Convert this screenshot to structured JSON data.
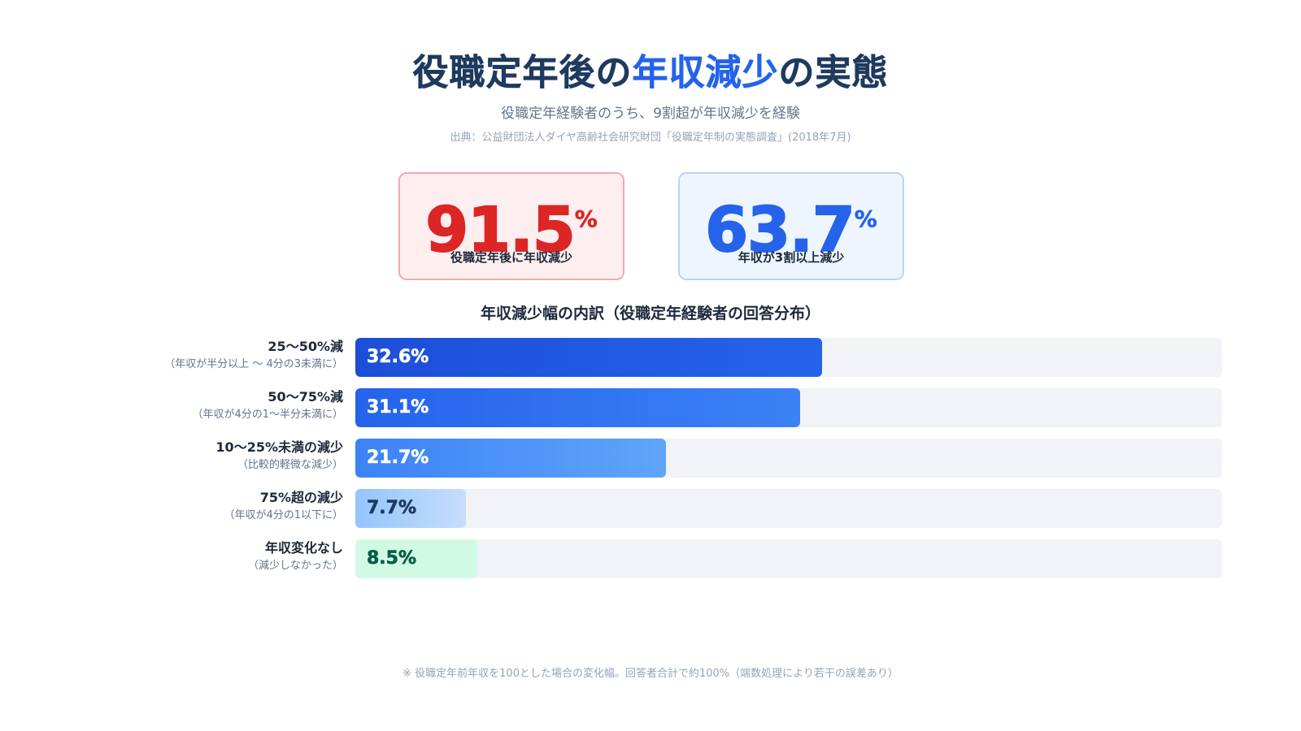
{
  "header": {
    "title_part1": "役職定年後の",
    "title_accent": "年収減少",
    "title_part2": "の実態",
    "subtitle": "役職定年経験者のうち、9割超が年収減少を経験",
    "source": "出典：公益財団法人ダイヤ高齢社会研究財団「役職定年制の実態調査」(2018年7月)"
  },
  "kpis": [
    {
      "value": "91.5",
      "unit": "%",
      "caption": "役職定年後に年収減少",
      "color": "#dc2626"
    },
    {
      "value": "63.7",
      "unit": "%",
      "caption": "年収が3割以上減少",
      "color": "#2563eb"
    }
  ],
  "chart_data": {
    "type": "bar",
    "orientation": "horizontal",
    "title": "年収減少幅の内訳（役職定年経験者の回答分布）",
    "xlim": [
      0,
      100
    ],
    "categories": [
      "25〜50%減",
      "50〜75%減",
      "10〜25%未満の減少",
      "75%超の減少",
      "年収変化なし"
    ],
    "sublabels": [
      "（年収が半分以上 〜 4分の3未満に）",
      "（年収が4分の1〜半分未満に）",
      "（比較的軽微な減少）",
      "（年収が4分の1以下に）",
      "（減少しなかった）"
    ],
    "values": [
      32.6,
      31.1,
      21.7,
      7.7,
      8.5
    ],
    "value_labels": [
      "32.6%",
      "31.1%",
      "21.7%",
      "7.7%",
      "8.5%"
    ],
    "bar_colors": [
      [
        "#1d4ed8",
        "#2563eb"
      ],
      [
        "#2563eb",
        "#3b82f6"
      ],
      [
        "#3b82f6",
        "#60a5fa"
      ],
      [
        "#93c5fd",
        "#c7ddfc"
      ],
      [
        "#d1fae5",
        "#d1fae5"
      ]
    ],
    "label_colors": [
      "#ffffff",
      "#ffffff",
      "#ffffff",
      "#1e3a5f",
      "#065f46"
    ]
  },
  "footnote": "※ 役職定年前年収を100とした場合の変化幅。回答者合計で約100%（端数処理により若干の誤差あり）"
}
